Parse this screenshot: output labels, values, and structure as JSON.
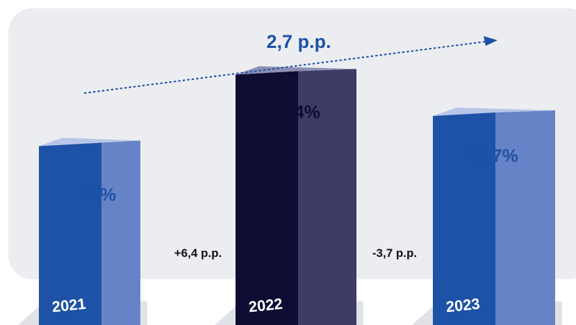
{
  "chart_data": {
    "type": "bar",
    "categories": [
      "2021",
      "2022",
      "2023"
    ],
    "values": [
      16,
      22.4,
      18.7
    ],
    "value_labels": [
      "16%",
      "22,4%",
      "18,7%"
    ],
    "changes": [
      "+6,4 p.p.",
      "-3,7 p.p."
    ],
    "overall_change": "2,7 p.p.",
    "style": "3d-columns",
    "grid": false,
    "legend": "none"
  },
  "colors": {
    "panel_background": "#ecedf1",
    "bar_2021": [
      "#1d52a6",
      "#6583c6",
      "#b7c6e9"
    ],
    "bar_2022": [
      "#0e0c33",
      "#3c3c66",
      "#8d8fb5"
    ],
    "bar_2023": [
      "#1d52a6",
      "#6583c6",
      "#b7c6e9"
    ],
    "label_blue": "#1d52a6",
    "label_dark": "#0e0c33",
    "arrow": "#1d52a6"
  }
}
